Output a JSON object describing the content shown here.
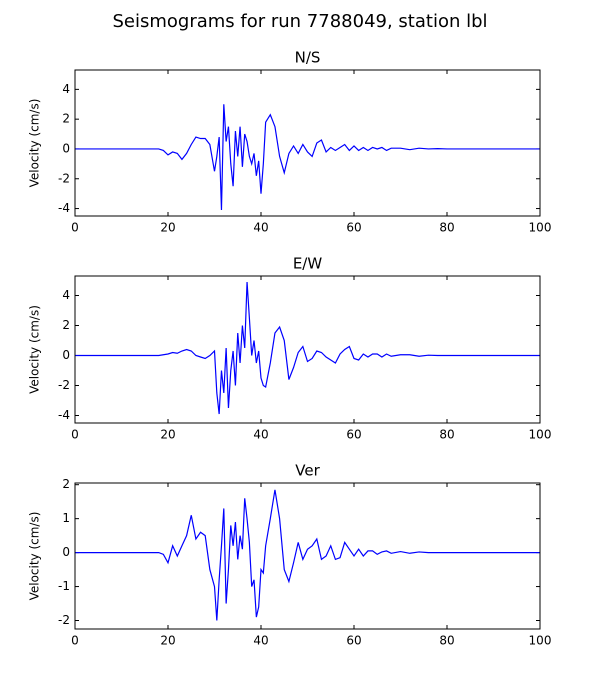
{
  "title": "Seismograms for run 7788049, station lbl",
  "chart_data": [
    {
      "type": "line",
      "title": "N/S",
      "ylabel": "Velocity (cm/s)",
      "color": "#0000ff",
      "xlim": [
        0,
        100
      ],
      "xticks": [
        0,
        20,
        40,
        60,
        80,
        100
      ],
      "ylim": [
        -4.5,
        5.3
      ],
      "yticks": [
        -4,
        -2,
        0,
        2,
        4
      ],
      "x": [
        0,
        10,
        17,
        18,
        19,
        20,
        21,
        22,
        23,
        24,
        25,
        26,
        27,
        28,
        29,
        30,
        30.5,
        31,
        31.5,
        32,
        32.5,
        33,
        33.5,
        34,
        34.5,
        35,
        35.5,
        36,
        36.5,
        37,
        37.5,
        38,
        38.5,
        39,
        39.5,
        40,
        40.5,
        41,
        42,
        43,
        44,
        45,
        46,
        47,
        48,
        49,
        50,
        51,
        52,
        53,
        54,
        55,
        56,
        57,
        58,
        59,
        60,
        61,
        62,
        63,
        64,
        65,
        66,
        67,
        68,
        70,
        72,
        74,
        76,
        78,
        80,
        85,
        90,
        100
      ],
      "values": [
        0,
        0,
        0,
        0,
        -0.1,
        -0.4,
        -0.2,
        -0.3,
        -0.7,
        -0.3,
        0.3,
        0.8,
        0.7,
        0.7,
        0.3,
        -1.5,
        -0.5,
        0.8,
        -4.1,
        3.0,
        0.5,
        1.5,
        -1.0,
        -2.5,
        1.2,
        -0.5,
        1.5,
        -1.2,
        1.0,
        0.5,
        -0.5,
        -1.0,
        -0.3,
        -1.8,
        -0.8,
        -3.0,
        -1.0,
        1.8,
        2.3,
        1.5,
        -0.5,
        -1.6,
        -0.3,
        0.2,
        -0.3,
        0.3,
        -0.2,
        -0.5,
        0.4,
        0.6,
        -0.2,
        0.1,
        -0.1,
        0.1,
        0.3,
        -0.1,
        0.2,
        -0.1,
        0.1,
        -0.1,
        0.1,
        0,
        0.1,
        -0.1,
        0.05,
        0.05,
        -0.05,
        0.05,
        0,
        0.02,
        0,
        0,
        0,
        0
      ]
    },
    {
      "type": "line",
      "title": "E/W",
      "ylabel": "Velocity (cm/s)",
      "color": "#0000ff",
      "xlim": [
        0,
        100
      ],
      "xticks": [
        0,
        20,
        40,
        60,
        80,
        100
      ],
      "ylim": [
        -4.5,
        5.3
      ],
      "yticks": [
        -4,
        -2,
        0,
        2,
        4
      ],
      "x": [
        0,
        10,
        17,
        18,
        19,
        20,
        21,
        22,
        23,
        24,
        25,
        26,
        27,
        28,
        29,
        30,
        30.5,
        31,
        31.5,
        32,
        32.5,
        33,
        33.5,
        34,
        34.5,
        35,
        35.5,
        36,
        36.5,
        37,
        37.5,
        38,
        38.5,
        39,
        39.5,
        40,
        40.5,
        41,
        42,
        43,
        44,
        45,
        46,
        47,
        48,
        49,
        50,
        51,
        52,
        53,
        54,
        55,
        56,
        57,
        58,
        59,
        60,
        61,
        62,
        63,
        64,
        65,
        66,
        67,
        68,
        70,
        72,
        74,
        76,
        78,
        80,
        85,
        90,
        100
      ],
      "values": [
        0,
        0,
        0,
        0,
        0.05,
        0.1,
        0.2,
        0.15,
        0.3,
        0.4,
        0.3,
        0,
        -0.1,
        -0.2,
        0,
        0.3,
        -2.5,
        -3.9,
        -1.0,
        -2.5,
        0.5,
        -3.5,
        -1.0,
        0.3,
        -2.0,
        1.5,
        -0.5,
        2.0,
        0.5,
        4.9,
        2.5,
        0,
        1.0,
        -0.5,
        0.3,
        -1.5,
        -2.0,
        -2.1,
        -0.5,
        1.5,
        1.9,
        1.0,
        -1.6,
        -0.8,
        0.2,
        0.6,
        -0.4,
        -0.2,
        0.3,
        0.2,
        -0.1,
        -0.3,
        -0.5,
        0.1,
        0.4,
        0.6,
        -0.2,
        -0.3,
        0.1,
        -0.1,
        0.1,
        0.1,
        -0.1,
        0.1,
        -0.05,
        0.05,
        0.05,
        -0.05,
        0.02,
        0,
        0,
        0,
        0,
        0
      ]
    },
    {
      "type": "line",
      "title": "Ver",
      "ylabel": "Velocity (cm/s)",
      "color": "#0000ff",
      "xlim": [
        0,
        100
      ],
      "xticks": [
        0,
        20,
        40,
        60,
        80,
        100
      ],
      "ylim": [
        -2.25,
        2.05
      ],
      "yticks": [
        -2,
        -1,
        0,
        1,
        2
      ],
      "x": [
        0,
        10,
        17,
        18,
        19,
        20,
        21,
        22,
        23,
        24,
        25,
        26,
        27,
        28,
        29,
        30,
        30.5,
        31,
        31.5,
        32,
        32.5,
        33,
        33.5,
        34,
        34.5,
        35,
        35.5,
        36,
        36.5,
        37,
        37.5,
        38,
        38.5,
        39,
        39.5,
        40,
        40.5,
        41,
        42,
        43,
        44,
        45,
        46,
        47,
        48,
        49,
        50,
        51,
        52,
        53,
        54,
        55,
        56,
        57,
        58,
        59,
        60,
        61,
        62,
        63,
        64,
        65,
        66,
        67,
        68,
        70,
        72,
        74,
        76,
        78,
        80,
        85,
        90,
        100
      ],
      "values": [
        0,
        0,
        0,
        0,
        -0.05,
        -0.3,
        0.2,
        -0.1,
        0.2,
        0.5,
        1.1,
        0.4,
        0.6,
        0.5,
        -0.5,
        -1.0,
        -2.0,
        -0.8,
        0.2,
        1.3,
        -1.5,
        -0.5,
        0.8,
        0.2,
        0.9,
        -0.2,
        0.5,
        0.1,
        1.6,
        1.0,
        0.3,
        -1.0,
        -0.8,
        -1.9,
        -1.6,
        -0.5,
        -0.6,
        0.2,
        1.0,
        1.85,
        1.0,
        -0.5,
        -0.85,
        -0.3,
        0.3,
        -0.2,
        0.1,
        0.2,
        0.4,
        -0.2,
        -0.1,
        0.2,
        -0.2,
        -0.15,
        0.3,
        0.1,
        -0.1,
        0.1,
        -0.1,
        0.05,
        0.05,
        -0.05,
        0.02,
        0.05,
        -0.02,
        0.03,
        -0.02,
        0.02,
        0,
        0,
        0,
        0,
        0,
        0
      ]
    }
  ]
}
